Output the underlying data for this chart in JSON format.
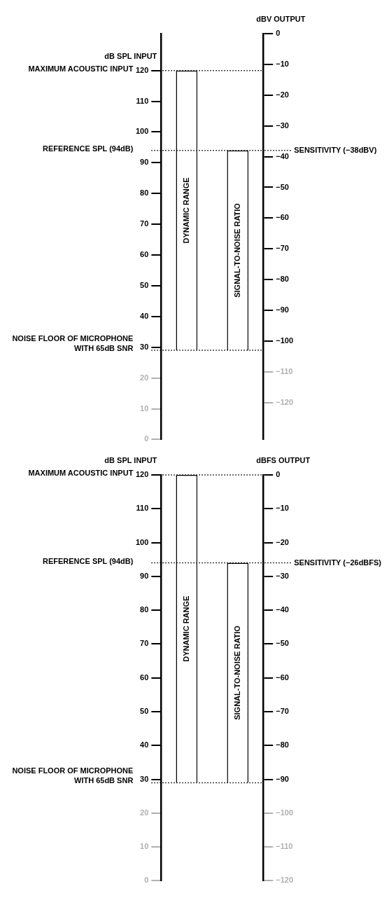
{
  "chart_data": [
    {
      "type": "bar",
      "categories": [
        "DYNAMIC RANGE",
        "SIGNAL-TO-NOISE RATIO"
      ],
      "base": [
        29,
        29
      ],
      "values": [
        91,
        65
      ],
      "color": "#ffffff",
      "ylabel": "dB SPL INPUT",
      "y2label": "dBV OUTPUT",
      "ylim": [
        0,
        132
      ],
      "yticks": [
        0,
        10,
        20,
        30,
        40,
        50,
        60,
        70,
        80,
        90,
        100,
        110,
        120
      ],
      "y2lim": [
        -132,
        0
      ],
      "y2ticks": [
        {
          "value": -120,
          "label": "−120"
        },
        {
          "value": -110,
          "label": "−110"
        },
        {
          "value": -100,
          "label": "−100"
        },
        {
          "value": -90,
          "label": "−90"
        },
        {
          "value": -80,
          "label": "−80"
        },
        {
          "value": -70,
          "label": "−70"
        },
        {
          "value": -60,
          "label": "−60"
        },
        {
          "value": -50,
          "label": "−50"
        },
        {
          "value": -40,
          "label": "−40"
        },
        {
          "value": -30,
          "label": "−30"
        },
        {
          "value": -20,
          "label": "−20"
        },
        {
          "value": -10,
          "label": "−10"
        },
        0
      ],
      "ref_lines": [
        {
          "axis": "y",
          "value": 120,
          "label": "MAXIMUM ACOUSTIC INPUT",
          "line_style": "dotted"
        },
        {
          "axis": "y",
          "value": 94,
          "label": "REFERENCE SPL (94dB)",
          "line_style": "dotted"
        },
        {
          "axis": "y",
          "value": 29,
          "label": "NOISE FLOOR OF MICROPHONE WITH 65dB SNR",
          "line_style": "dotted"
        },
        {
          "axis": "y2",
          "value": -38,
          "label": "SENSITIVITY (−38dBV)",
          "line_style": "dotted"
        }
      ],
      "legend": false
    },
    {
      "type": "bar",
      "categories": [
        "DYNAMIC RANGE",
        "SIGNAL-TO-NOISE RATIO"
      ],
      "base": [
        29,
        29
      ],
      "values": [
        91,
        65
      ],
      "color": "#ffffff",
      "ylabel": "dB SPL INPUT",
      "y2label": "dBFS OUTPUT",
      "ylim": [
        0,
        120
      ],
      "yticks": [
        0,
        10,
        20,
        30,
        40,
        50,
        60,
        70,
        80,
        90,
        100,
        110,
        120
      ],
      "y2lim": [
        -120,
        0
      ],
      "y2ticks": [
        {
          "value": -120,
          "label": "−120"
        },
        {
          "value": -110,
          "label": "−110"
        },
        {
          "value": -100,
          "label": "−100"
        },
        {
          "value": -90,
          "label": "−90"
        },
        {
          "value": -80,
          "label": "−80"
        },
        {
          "value": -70,
          "label": "−70"
        },
        {
          "value": -60,
          "label": "−60"
        },
        {
          "value": -50,
          "label": "−50"
        },
        {
          "value": -40,
          "label": "−40"
        },
        {
          "value": -30,
          "label": "−30"
        },
        {
          "value": -20,
          "label": "−20"
        },
        {
          "value": -10,
          "label": "−10"
        },
        0
      ],
      "ref_lines": [
        {
          "axis": "y",
          "value": 120,
          "label": "MAXIMUM ACOUSTIC INPUT",
          "line_style": "dotted"
        },
        {
          "axis": "y",
          "value": 94,
          "label": "REFERENCE SPL (94dB)",
          "line_style": "dotted"
        },
        {
          "axis": "y",
          "value": 29,
          "label": "NOISE FLOOR OF MICROPHONE WITH 65dB SNR",
          "line_style": "dotted"
        },
        {
          "axis": "y2",
          "value": -26,
          "label": "SENSITIVITY (−26dBFS)",
          "line_style": "dotted"
        }
      ],
      "legend": false
    }
  ]
}
